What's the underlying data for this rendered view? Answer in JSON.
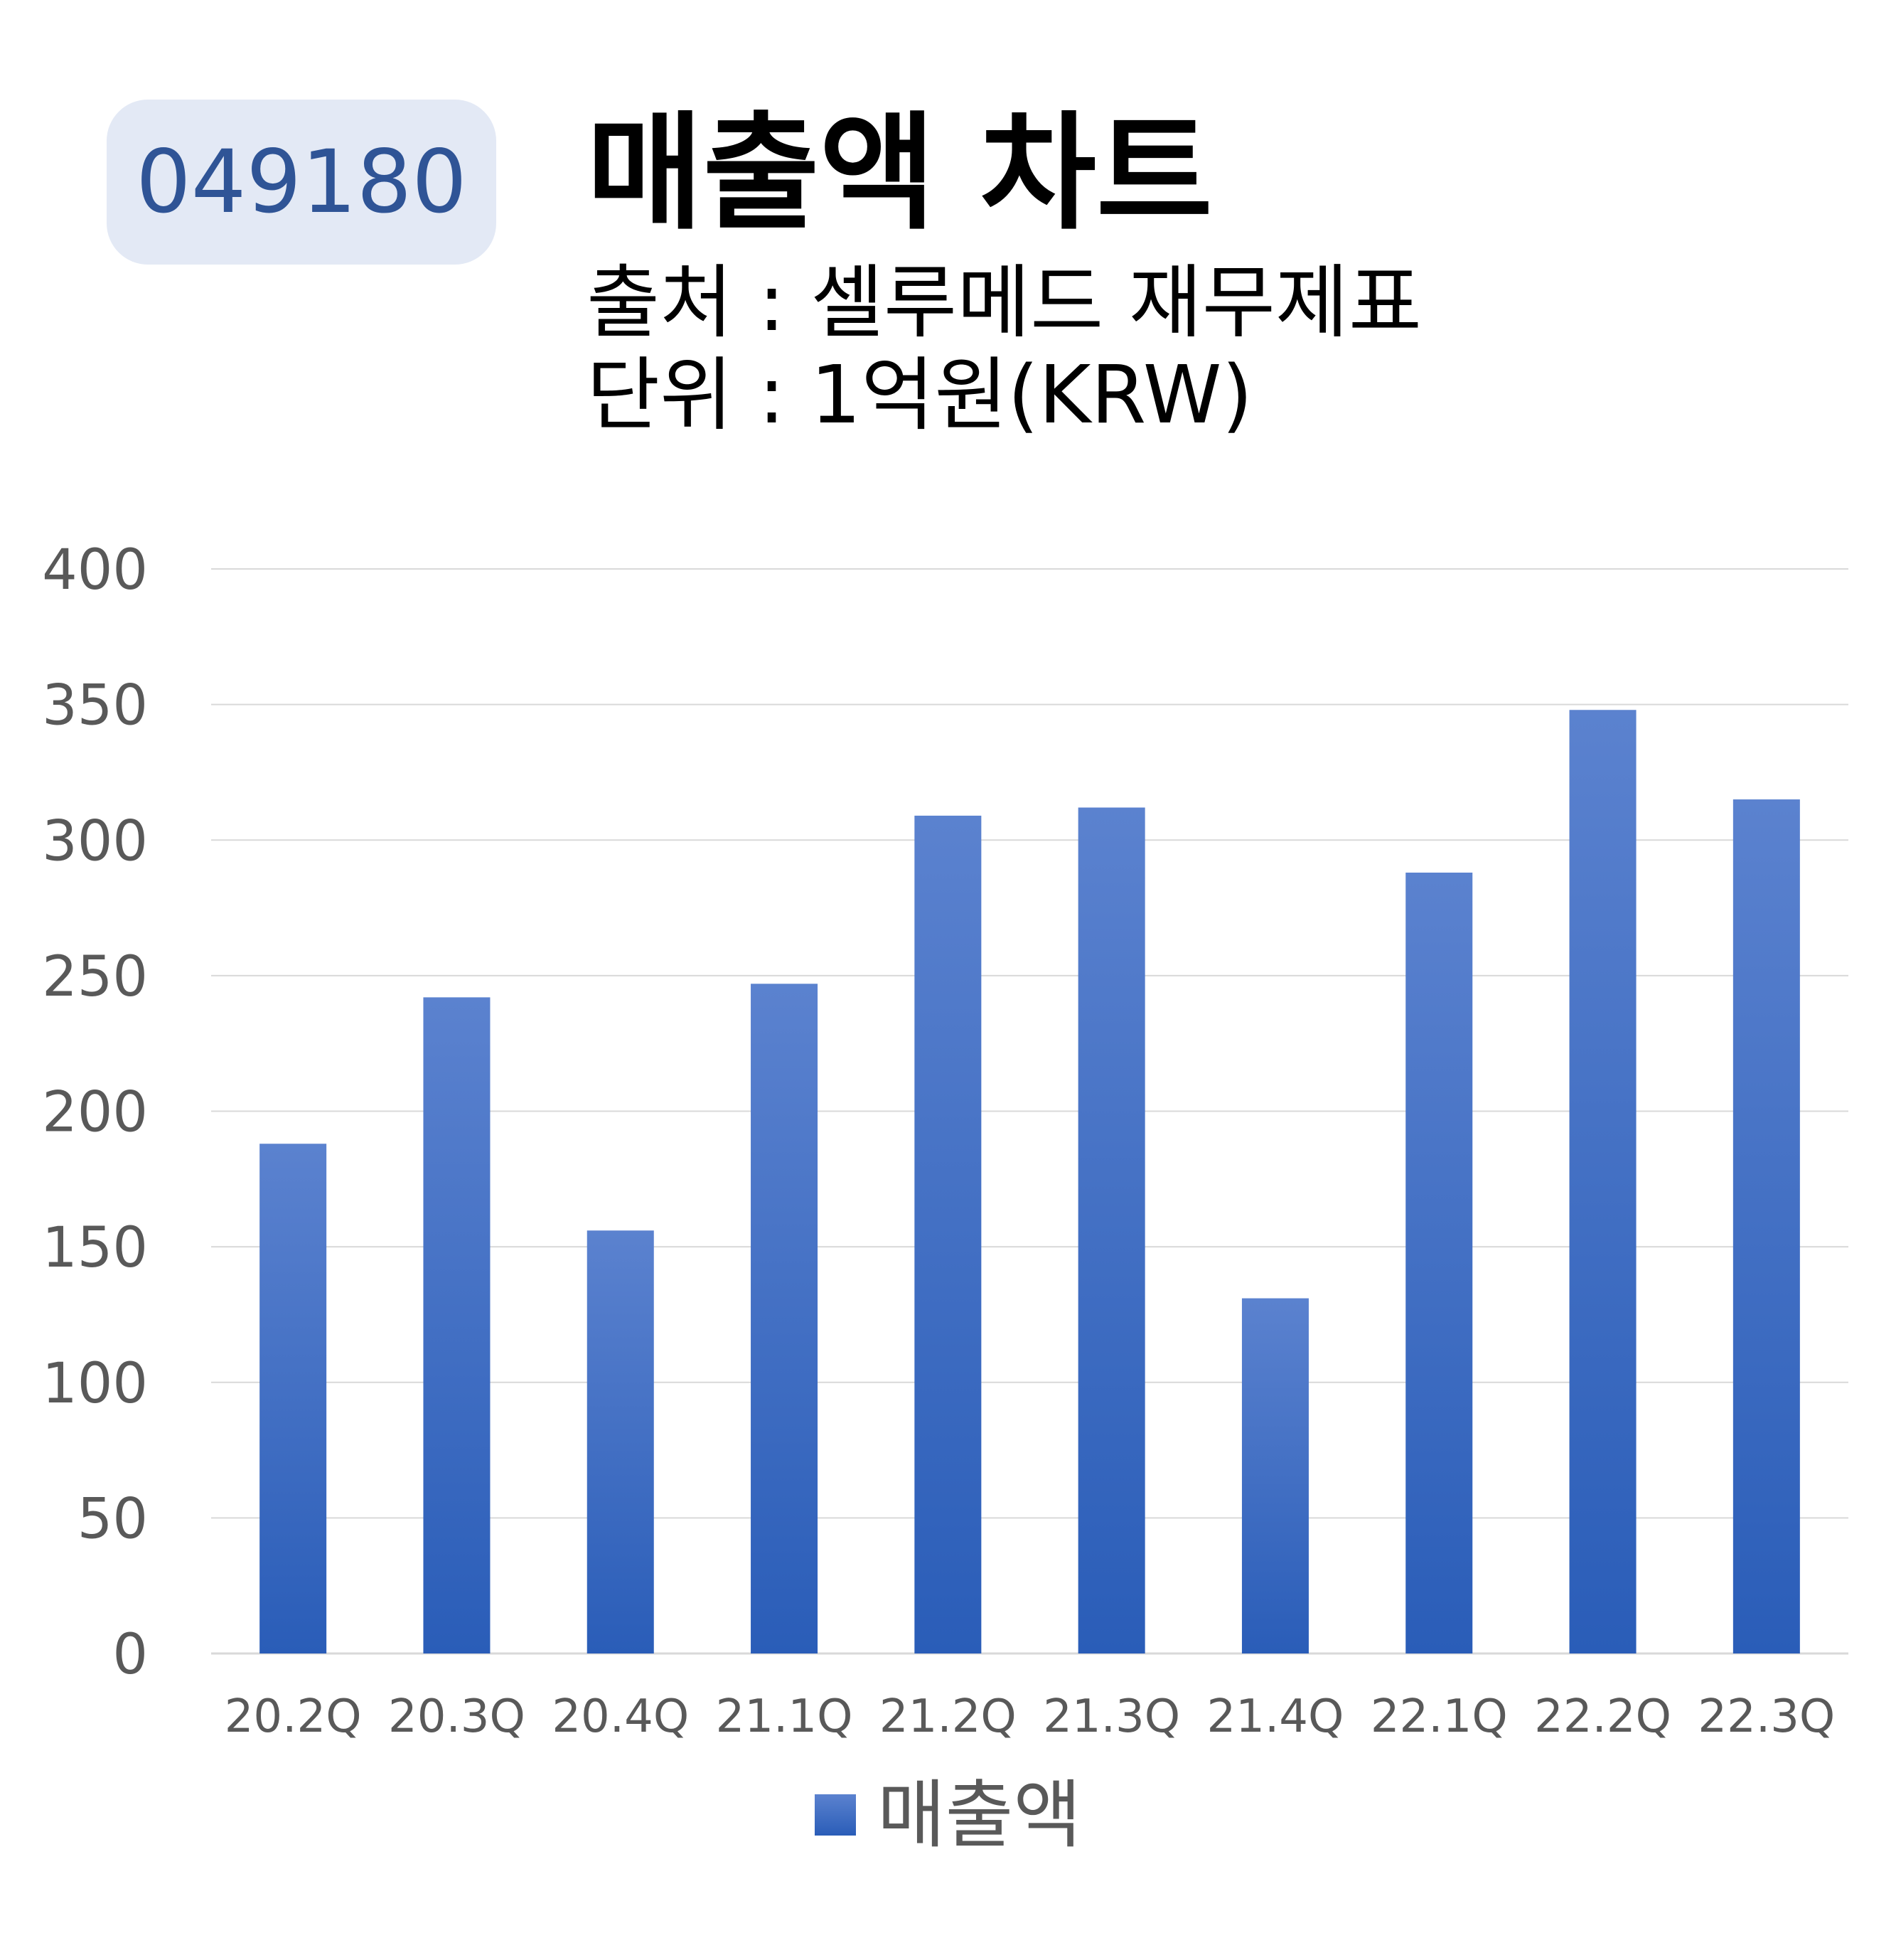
{
  "header": {
    "code": "049180",
    "title": "매출액 차트",
    "source": "출처 : 셀루메드 재무제표",
    "unit": "단위 : 1억원(KRW)"
  },
  "colors": {
    "bar_top": "#5b82cf",
    "bar_bottom": "#2a5db8",
    "gridline": "#d9d9d9",
    "badge_bg": "#e3e9f5",
    "badge_text": "#2f5496"
  },
  "chart_data": {
    "type": "bar",
    "categories": [
      "20.2Q",
      "20.3Q",
      "20.4Q",
      "21.1Q",
      "21.2Q",
      "21.3Q",
      "21.4Q",
      "22.1Q",
      "22.2Q",
      "22.3Q"
    ],
    "series": [
      {
        "name": "매출액",
        "values": [
          188,
          242,
          156,
          247,
          309,
          312,
          131,
          288,
          348,
          315
        ]
      }
    ],
    "ylim": [
      0,
      400
    ],
    "yticks": [
      0,
      50,
      100,
      150,
      200,
      250,
      300,
      350,
      400
    ],
    "grid": true,
    "legend": "bottom-center"
  }
}
